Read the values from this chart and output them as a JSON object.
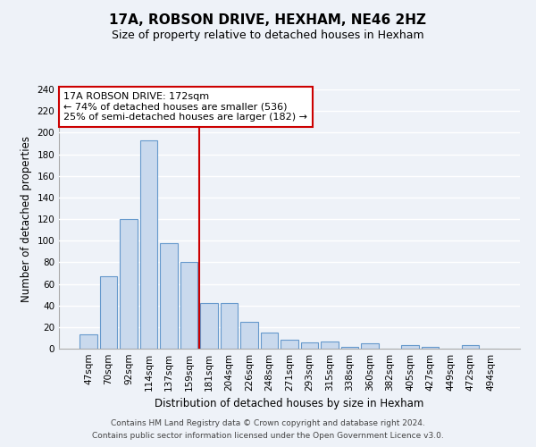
{
  "title": "17A, ROBSON DRIVE, HEXHAM, NE46 2HZ",
  "subtitle": "Size of property relative to detached houses in Hexham",
  "xlabel": "Distribution of detached houses by size in Hexham",
  "ylabel": "Number of detached properties",
  "bin_labels": [
    "47sqm",
    "70sqm",
    "92sqm",
    "114sqm",
    "137sqm",
    "159sqm",
    "181sqm",
    "204sqm",
    "226sqm",
    "248sqm",
    "271sqm",
    "293sqm",
    "315sqm",
    "338sqm",
    "360sqm",
    "382sqm",
    "405sqm",
    "427sqm",
    "449sqm",
    "472sqm",
    "494sqm"
  ],
  "bar_values": [
    13,
    67,
    120,
    193,
    98,
    80,
    42,
    42,
    25,
    15,
    8,
    6,
    7,
    2,
    5,
    0,
    3,
    2,
    0,
    3,
    0
  ],
  "bar_color": "#c9d9ed",
  "bar_edge_color": "#6699cc",
  "ylim": [
    0,
    240
  ],
  "yticks": [
    0,
    20,
    40,
    60,
    80,
    100,
    120,
    140,
    160,
    180,
    200,
    220,
    240
  ],
  "vline_x": 5.5,
  "vline_color": "#cc0000",
  "annotation_title": "17A ROBSON DRIVE: 172sqm",
  "annotation_line1": "← 74% of detached houses are smaller (536)",
  "annotation_line2": "25% of semi-detached houses are larger (182) →",
  "annotation_box_color": "#cc0000",
  "footer_line1": "Contains HM Land Registry data © Crown copyright and database right 2024.",
  "footer_line2": "Contains public sector information licensed under the Open Government Licence v3.0.",
  "background_color": "#eef2f8",
  "grid_color": "#ffffff",
  "title_fontsize": 11,
  "subtitle_fontsize": 9,
  "axis_label_fontsize": 8.5,
  "tick_fontsize": 7.5,
  "footer_fontsize": 6.5,
  "annotation_fontsize": 8
}
